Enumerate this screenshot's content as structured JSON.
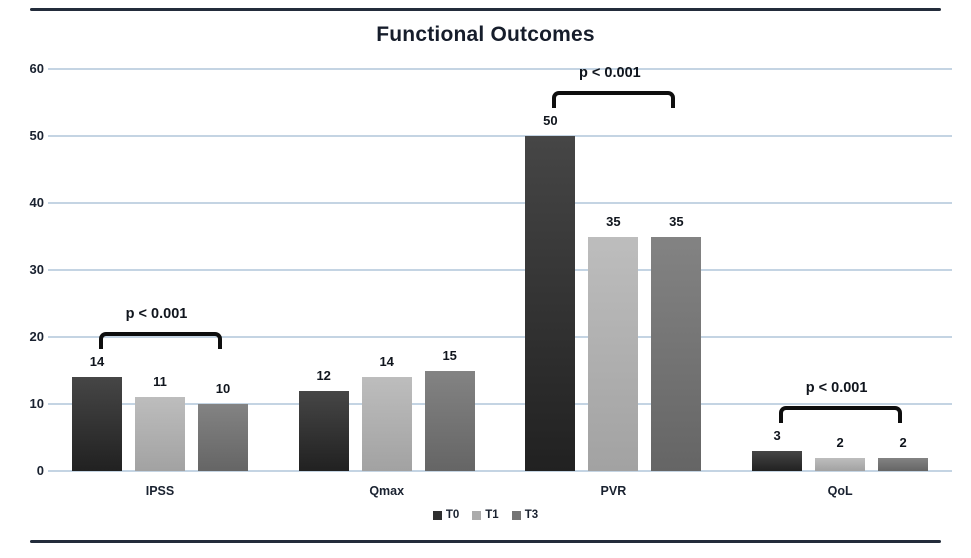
{
  "title": "Functional Outcomes",
  "colors": {
    "background": "#ffffff",
    "gridline": "#c4d4e3",
    "axis_text": "#1a2230",
    "bracket": "#0e0e0e",
    "border_rule": "#232c3b"
  },
  "chart_data": {
    "type": "bar",
    "title": "Functional Outcomes",
    "categories": [
      "IPSS",
      "Qmax",
      "PVR",
      "QoL"
    ],
    "series": [
      {
        "name": "T0",
        "values": [
          14,
          12,
          50,
          3
        ],
        "color_top": "#464646",
        "color_bottom": "#212121",
        "legend_color": "#2f2f2f"
      },
      {
        "name": "T1",
        "values": [
          11,
          14,
          35,
          2
        ],
        "color_top": "#bdbdbd",
        "color_bottom": "#a2a2a2",
        "legend_color": "#ababab"
      },
      {
        "name": "T3",
        "values": [
          10,
          15,
          35,
          2
        ],
        "color_top": "#838383",
        "color_bottom": "#656565",
        "legend_color": "#747474"
      }
    ],
    "xlabel": "",
    "ylabel": "",
    "ylim": [
      0,
      60
    ],
    "yticks": [
      0,
      10,
      20,
      30,
      40,
      50,
      60
    ],
    "grid": true,
    "legend_position": "bottom-center",
    "annotations": [
      {
        "text": "p < 0.001",
        "category": "IPSS"
      },
      {
        "text": "p < 0.001",
        "category": "PVR"
      },
      {
        "text": "p < 0.001",
        "category": "QoL"
      }
    ]
  }
}
